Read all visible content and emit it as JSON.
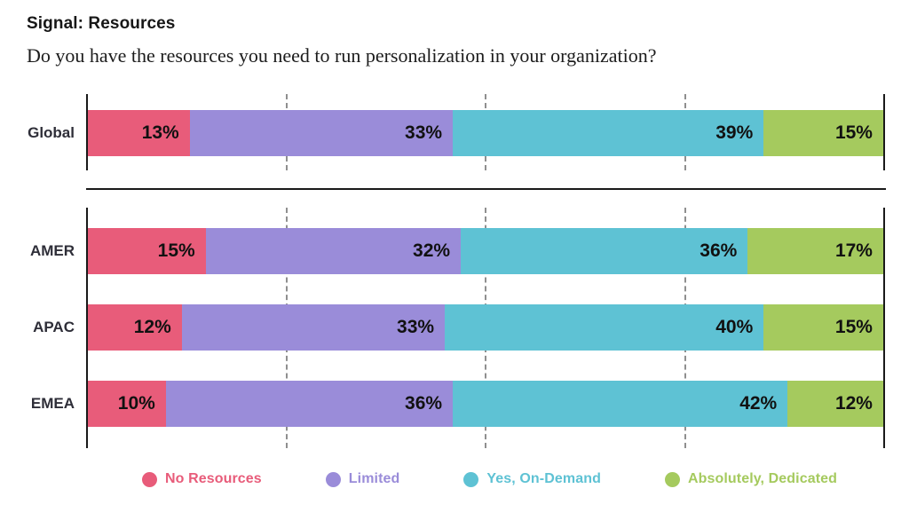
{
  "header": {
    "title": "Signal: Resources",
    "subtitle": "Do you have the resources you need to run personalization in your organization?"
  },
  "chart_data": {
    "type": "bar",
    "orientation": "horizontal",
    "stacked": true,
    "unit": "%",
    "categories": [
      "Global",
      "AMER",
      "APAC",
      "EMEA"
    ],
    "groups": [
      [
        "Global"
      ],
      [
        "AMER",
        "APAC",
        "EMEA"
      ]
    ],
    "series": [
      {
        "name": "No Resources",
        "color": "#e85c7a",
        "values": [
          13,
          15,
          12,
          10
        ]
      },
      {
        "name": "Limited",
        "color": "#9a8cd9",
        "values": [
          33,
          32,
          33,
          36
        ]
      },
      {
        "name": "Yes, On-Demand",
        "color": "#5ec2d4",
        "values": [
          39,
          36,
          40,
          42
        ]
      },
      {
        "name": "Absolutely, Dedicated",
        "color": "#a5ca5e",
        "values": [
          15,
          17,
          15,
          12
        ]
      }
    ],
    "xlim": [
      0,
      100
    ],
    "gridlines_pct": [
      25,
      50,
      75
    ],
    "grid_style": "dashed",
    "legend_position": "bottom",
    "value_label_format": "{v}%"
  },
  "legend": {
    "items": [
      {
        "label": "No Resources",
        "color": "#e85c7a"
      },
      {
        "label": "Limited",
        "color": "#9a8cd9"
      },
      {
        "label": "Yes, On-Demand",
        "color": "#5ec2d4"
      },
      {
        "label": "Absolutely, Dedicated",
        "color": "#a5ca5e"
      }
    ]
  }
}
